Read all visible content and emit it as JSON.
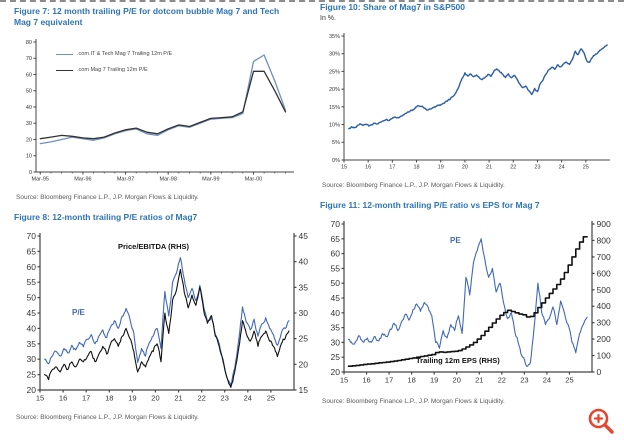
{
  "icons": {
    "zoom_in": "magnifier-plus",
    "zoom_in_color": "#e8432d"
  },
  "chart_data": [
    {
      "id": "fig7",
      "type": "line",
      "title": "Figure 7: 12 month trailing P/E for dotcom bubble Mag 7 and Tech Mag 7 equivalent",
      "source": "Source: Bloomberg Finance L.P., J.P. Morgan Flows & Liquidity.",
      "xlabel": "",
      "ylabel": "",
      "grid": false,
      "legend_position": "top-left",
      "xlim": [
        -0.4,
        23.8
      ],
      "ylim": [
        0,
        80
      ],
      "yticks": [
        [
          0,
          "0"
        ],
        [
          10,
          "10"
        ],
        [
          20,
          "20"
        ],
        [
          30,
          "30"
        ],
        [
          40,
          "40"
        ],
        [
          50,
          "50"
        ],
        [
          60,
          "60"
        ],
        [
          70,
          "70"
        ],
        [
          80,
          "80"
        ]
      ],
      "xticks": [
        [
          0,
          "Mar-95"
        ],
        [
          4,
          "Mar-96"
        ],
        [
          8,
          "Mar-97"
        ],
        [
          12,
          "Mar-98"
        ],
        [
          16,
          "Mar-99"
        ],
        [
          20,
          "Mar-00"
        ]
      ],
      "minor_x": 1,
      "margin": {
        "l": 20,
        "r": 8,
        "t": 6,
        "b": 16
      },
      "fs": 5.5,
      "xfs": 5.5,
      "series": [
        {
          "name": ".com IT & Tech Mag 7 Trailing 12m P/E",
          "axis": "l",
          "color": "#6f8fc0",
          "width": 1.3,
          "x0": 0,
          "dx": 1,
          "y": [
            17.5,
            18.5,
            20,
            21.5,
            20.5,
            19.5,
            21,
            23.5,
            25.5,
            26.5,
            23.5,
            22.5,
            26,
            28.5,
            27.5,
            30,
            32.5,
            33,
            33.5,
            36,
            68,
            72,
            56,
            38
          ]
        },
        {
          "name": ".com Mag 7 Trailing 12m P/E",
          "axis": "l",
          "color": "#333333",
          "width": 1.3,
          "x0": 0,
          "dx": 1,
          "y": [
            20.5,
            21.5,
            22.5,
            22,
            21,
            20.5,
            21.5,
            24,
            26,
            27,
            24.5,
            23.5,
            26.5,
            29,
            28,
            30.5,
            33,
            33.5,
            34,
            37,
            62,
            62,
            50,
            37
          ]
        }
      ]
    },
    {
      "id": "fig10",
      "type": "line",
      "title": "Figure 10: Share of Mag7 in S&P500",
      "subtitle": "In %.",
      "source": "Source: Bloomberg Finance L.P., J.P. Morgan Flows & Liquidity.",
      "xlabel": "",
      "ylabel": "In %",
      "grid": false,
      "xlim": [
        15,
        26
      ],
      "ylim": [
        0,
        35
      ],
      "yticks": [
        [
          0,
          "0%"
        ],
        [
          5,
          "5%"
        ],
        [
          10,
          "10%"
        ],
        [
          15,
          "15%"
        ],
        [
          20,
          "20%"
        ],
        [
          25,
          "25%"
        ],
        [
          30,
          "30%"
        ],
        [
          35,
          "35%"
        ]
      ],
      "xticks": [
        [
          15,
          "15"
        ],
        [
          16,
          "16"
        ],
        [
          17,
          "17"
        ],
        [
          18,
          "18"
        ],
        [
          19,
          "19"
        ],
        [
          20,
          "20"
        ],
        [
          21,
          "21"
        ],
        [
          22,
          "22"
        ],
        [
          23,
          "23"
        ],
        [
          24,
          "24"
        ],
        [
          25,
          "25"
        ]
      ],
      "margin": {
        "l": 22,
        "r": 10,
        "t": 6,
        "b": 14
      },
      "fs": 5.5,
      "xfs": 5.5,
      "series": [
        {
          "name": "Share of Mag7 in S&P500",
          "axis": "l",
          "color": "#2b5dad",
          "width": 1.4,
          "x0": 15.2,
          "dx": 0.12,
          "rough": 0.8,
          "y": [
            8.8,
            9.4,
            9.1,
            9.7,
            10.2,
            9.8,
            10.1,
            9.6,
            9.9,
            10.4,
            10.2,
            10.7,
            11.1,
            11.5,
            11.2,
            11.8,
            12.1,
            11.9,
            12.4,
            12.8,
            13.3,
            13.7,
            14.1,
            14.9,
            15.3,
            15.1,
            14.6,
            14.1,
            14.4,
            14.8,
            15.1,
            15.4,
            15.7,
            16.1,
            16.6,
            17.2,
            18.0,
            19.2,
            20.8,
            23.0,
            24.6,
            23.7,
            24.3,
            23.5,
            24.0,
            23.2,
            22.7,
            23.4,
            24.2,
            23.6,
            25.1,
            25.7,
            24.9,
            24.2,
            23.3,
            24.3,
            23.2,
            23.9,
            22.8,
            21.4,
            20.4,
            20.9,
            19.6,
            18.5,
            20.2,
            19.3,
            21.6,
            22.7,
            24.3,
            25.5,
            26.2,
            25.6,
            26.9,
            26.3,
            27.1,
            27.6,
            27.0,
            28.4,
            30.7,
            29.8,
            31.4,
            30.3,
            28.0,
            27.6,
            29.0,
            29.9,
            30.5,
            31.2,
            31.8,
            32.5
          ]
        }
      ]
    },
    {
      "id": "fig8",
      "type": "line",
      "title": "Figure 8: 12-month trailing P/E ratios of Mag7",
      "source": "Source: Bloomberg Finance L.P., J.P. Morgan Flows & Liquidity.",
      "xlabel": "",
      "ylabel": "P/E (LHS)",
      "y2label": "Price/EBITDA (RHS)",
      "grid": false,
      "xlim": [
        15,
        26
      ],
      "ylim": [
        20,
        70
      ],
      "y2lim": [
        15,
        45
      ],
      "yticks": [
        [
          20,
          "20"
        ],
        [
          25,
          "25"
        ],
        [
          30,
          "30"
        ],
        [
          35,
          "35"
        ],
        [
          40,
          "40"
        ],
        [
          45,
          "45"
        ],
        [
          50,
          "50"
        ],
        [
          55,
          "55"
        ],
        [
          60,
          "60"
        ],
        [
          65,
          "65"
        ],
        [
          70,
          "70"
        ]
      ],
      "y2ticks": [
        [
          15,
          "15"
        ],
        [
          20,
          "20"
        ],
        [
          25,
          "25"
        ],
        [
          30,
          "30"
        ],
        [
          35,
          "35"
        ],
        [
          40,
          "40"
        ],
        [
          45,
          "45"
        ]
      ],
      "xticks": [
        [
          15,
          "15"
        ],
        [
          16,
          "16"
        ],
        [
          17,
          "17"
        ],
        [
          18,
          "18"
        ],
        [
          19,
          "19"
        ],
        [
          20,
          "20"
        ],
        [
          21,
          "21"
        ],
        [
          22,
          "22"
        ],
        [
          23,
          "23"
        ],
        [
          24,
          "24"
        ],
        [
          25,
          "25"
        ]
      ],
      "margin": {
        "l": 26,
        "r": 26,
        "t": 8,
        "b": 16
      },
      "fs": 8.5,
      "xfs": 7.5,
      "axis_width": 1.2,
      "series": [
        {
          "name": "P/E",
          "axis": "l",
          "color": "#3f68bd",
          "width": 1.1,
          "x0": 15.2,
          "dx": 0.168,
          "rough": 2.2,
          "y": [
            30,
            28.5,
            31,
            32.5,
            31,
            33.5,
            32,
            34.5,
            33,
            35.5,
            34,
            36.5,
            38,
            35,
            37.5,
            39.5,
            37,
            40.5,
            42.5,
            40,
            44,
            46.5,
            43,
            38.5,
            29,
            33.5,
            31,
            35.5,
            37.5,
            40,
            33.5,
            52,
            44,
            55,
            58,
            63,
            56,
            50,
            53,
            49,
            54,
            47,
            42,
            44,
            38,
            35,
            30,
            24,
            21.5,
            27,
            36,
            47,
            42,
            39.5,
            43,
            37.5,
            41.5,
            43.5,
            40,
            38,
            34.5,
            38.5,
            40,
            42.5
          ]
        },
        {
          "name": "Price/EBITDA (RHS)",
          "axis": "r",
          "color": "#111111",
          "width": 1.1,
          "x0": 15.2,
          "dx": 0.168,
          "rough": 2.2,
          "y": [
            18,
            17,
            19,
            19.5,
            18.5,
            20,
            19,
            20.5,
            19.5,
            21,
            20.5,
            21.5,
            22.5,
            20.5,
            22,
            23.5,
            22,
            24,
            25,
            23.5,
            25.5,
            27,
            25,
            22.5,
            18.5,
            20.5,
            19.5,
            21.5,
            22.5,
            24,
            20.5,
            30,
            26,
            32.5,
            34.5,
            38.5,
            34,
            31,
            33.5,
            31.5,
            35,
            30.5,
            28,
            29.5,
            25.5,
            23.5,
            20.5,
            17.5,
            15.5,
            18.5,
            23,
            28.5,
            26,
            24.5,
            26.5,
            23.5,
            25.5,
            26.5,
            24.5,
            23.5,
            21.5,
            24,
            25,
            26.5
          ]
        }
      ]
    },
    {
      "id": "fig11",
      "type": "line",
      "title": "Figure 11: 12-month trailing P/E ratio vs EPS for Mag 7",
      "source": "Source: Bloomberg Finance L.P., J.P. Morgan Flows & Liquidity.",
      "xlabel": "",
      "ylabel": "PE (LHS)",
      "y2label": "Trailing 12m EPS (RHS)",
      "grid": false,
      "xlim": [
        15,
        26
      ],
      "ylim": [
        20,
        70
      ],
      "y2lim": [
        0,
        900
      ],
      "yticks": [
        [
          20,
          "20"
        ],
        [
          25,
          "25"
        ],
        [
          30,
          "30"
        ],
        [
          35,
          "35"
        ],
        [
          40,
          "40"
        ],
        [
          45,
          "45"
        ],
        [
          50,
          "50"
        ],
        [
          55,
          "55"
        ],
        [
          60,
          "60"
        ],
        [
          65,
          "65"
        ],
        [
          70,
          "70"
        ]
      ],
      "y2ticks": [
        [
          0,
          "0"
        ],
        [
          100,
          "100"
        ],
        [
          200,
          "200"
        ],
        [
          300,
          "300"
        ],
        [
          400,
          "400"
        ],
        [
          500,
          "500"
        ],
        [
          600,
          "600"
        ],
        [
          700,
          "700"
        ],
        [
          800,
          "800"
        ],
        [
          900,
          "900"
        ]
      ],
      "xticks": [
        [
          15,
          "15"
        ],
        [
          16,
          "16"
        ],
        [
          17,
          "17"
        ],
        [
          18,
          "18"
        ],
        [
          19,
          "19"
        ],
        [
          20,
          "20"
        ],
        [
          21,
          "21"
        ],
        [
          22,
          "22"
        ],
        [
          23,
          "23"
        ],
        [
          24,
          "24"
        ],
        [
          25,
          "25"
        ]
      ],
      "margin": {
        "l": 24,
        "r": 30,
        "t": 8,
        "b": 16
      },
      "fs": 8.5,
      "xfs": 7.5,
      "axis_width": 1.2,
      "series": [
        {
          "name": "PE",
          "axis": "l",
          "color": "#3f68bd",
          "width": 1.1,
          "x0": 15.2,
          "dx": 0.168,
          "rough": 2.2,
          "y": [
            31,
            29.5,
            30.5,
            32,
            30,
            31.5,
            30,
            32,
            30.5,
            33,
            32,
            34.5,
            36.5,
            34,
            37,
            39.5,
            37.5,
            41,
            43,
            40.5,
            43.5,
            42,
            39,
            30,
            28,
            34,
            31.5,
            36,
            34,
            39,
            33,
            52,
            46,
            57,
            61,
            65,
            58,
            52,
            55,
            47,
            50,
            43,
            38,
            40,
            33,
            29,
            25,
            22,
            23,
            35,
            50,
            40,
            36,
            38,
            42,
            36,
            44,
            40,
            36,
            30,
            26.5,
            33,
            36,
            38.5
          ]
        },
        {
          "name": "Trailing 12m EPS (RHS)",
          "axis": "r",
          "color": "#111111",
          "width": 1.6,
          "step": true,
          "x0": 15.2,
          "dx": 0.168,
          "y": [
            35,
            38,
            40,
            43,
            46,
            48,
            50,
            53,
            56,
            58,
            60,
            63,
            66,
            70,
            74,
            78,
            82,
            86,
            90,
            94,
            98,
            102,
            106,
            118,
            122,
            120,
            122,
            124,
            126,
            130,
            140,
            152,
            165,
            180,
            200,
            222,
            248,
            272,
            298,
            322,
            345,
            362,
            375,
            368,
            360,
            352,
            348,
            335,
            338,
            360,
            392,
            420,
            450,
            478,
            505,
            532,
            565,
            605,
            650,
            700,
            748,
            790,
            822,
            822
          ]
        }
      ]
    }
  ]
}
